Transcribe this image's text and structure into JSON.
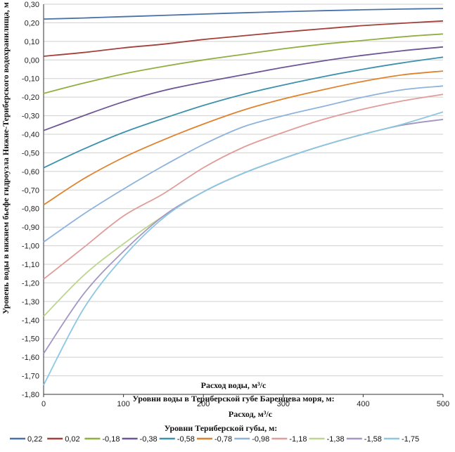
{
  "chart_data": {
    "type": "line",
    "ylabel": "Уровень воды в нижнем бьефе гидроузла Нижне-Териберского водохранилища, м",
    "xlabel": "Расход воды, м³/с",
    "overlay_labels": [
      "Уровни воды в Териберской губе Баренцева моря, м:",
      "Расход, м³/с"
    ],
    "legend_title": "Уровни Териберской губы, м:",
    "xlim": [
      0,
      500
    ],
    "ylim": [
      -1.8,
      0.3
    ],
    "xticks": [
      "0",
      "100",
      "200",
      "300",
      "400",
      "500"
    ],
    "yticks": [
      "0,30",
      "0,20",
      "0,10",
      "0,00",
      "-0,10",
      "-0,20",
      "-0,30",
      "-0,40",
      "-0,50",
      "-0,60",
      "-0,70",
      "-0,80",
      "-0,90",
      "-1,00",
      "-1,10",
      "-1,20",
      "-1,30",
      "-1,40",
      "-1,50",
      "-1,60",
      "-1,70",
      "-1,80"
    ],
    "grid": "horizontal",
    "legend_position": "bottom",
    "x": [
      0,
      50,
      100,
      150,
      200,
      250,
      300,
      350,
      400,
      450,
      500
    ],
    "series": [
      {
        "name": "0,22",
        "color": "#4a72a8",
        "values": [
          0.22,
          0.226,
          0.233,
          0.24,
          0.247,
          0.254,
          0.26,
          0.265,
          0.27,
          0.274,
          0.277
        ]
      },
      {
        "name": "0,02",
        "color": "#a4403b",
        "values": [
          0.02,
          0.04,
          0.065,
          0.085,
          0.11,
          0.13,
          0.15,
          0.168,
          0.185,
          0.198,
          0.21
        ]
      },
      {
        "name": "-0,18",
        "color": "#8fb03e",
        "values": [
          -0.18,
          -0.125,
          -0.075,
          -0.035,
          0.0,
          0.03,
          0.06,
          0.085,
          0.105,
          0.125,
          0.14
        ]
      },
      {
        "name": "-0,38",
        "color": "#6e5596",
        "values": [
          -0.38,
          -0.3,
          -0.225,
          -0.165,
          -0.12,
          -0.08,
          -0.04,
          -0.005,
          0.025,
          0.05,
          0.07
        ]
      },
      {
        "name": "-0,58",
        "color": "#3d91ad",
        "values": [
          -0.58,
          -0.48,
          -0.39,
          -0.315,
          -0.245,
          -0.185,
          -0.135,
          -0.09,
          -0.05,
          -0.015,
          0.015
        ]
      },
      {
        "name": "-0,78",
        "color": "#e0822d",
        "values": [
          -0.78,
          -0.64,
          -0.525,
          -0.43,
          -0.345,
          -0.27,
          -0.21,
          -0.16,
          -0.115,
          -0.08,
          -0.06
        ]
      },
      {
        "name": "-0,98",
        "color": "#8eb3dc",
        "values": [
          -0.98,
          -0.83,
          -0.695,
          -0.57,
          -0.455,
          -0.36,
          -0.3,
          -0.25,
          -0.2,
          -0.16,
          -0.14
        ]
      },
      {
        "name": "-1,18",
        "color": "#e09d9a",
        "values": [
          -1.18,
          -1.01,
          -0.84,
          -0.72,
          -0.58,
          -0.47,
          -0.39,
          -0.32,
          -0.265,
          -0.22,
          -0.185
        ]
      },
      {
        "name": "-1,38",
        "color": "#bdd68f",
        "values": [
          -1.38,
          -1.16,
          -0.99,
          -0.84,
          -0.71,
          -0.61,
          -0.53,
          -0.46,
          -0.4,
          -0.35,
          -0.32
        ]
      },
      {
        "name": "-1,58",
        "color": "#a596c4",
        "values": [
          -1.58,
          -1.26,
          -1.03,
          -0.84,
          -0.71,
          -0.61,
          -0.53,
          -0.46,
          -0.4,
          -0.35,
          -0.32
        ]
      },
      {
        "name": "-1,75",
        "color": "#8ec7e2",
        "values": [
          -1.75,
          -1.34,
          -1.06,
          -0.85,
          -0.71,
          -0.61,
          -0.53,
          -0.46,
          -0.4,
          -0.345,
          -0.28
        ]
      }
    ]
  }
}
